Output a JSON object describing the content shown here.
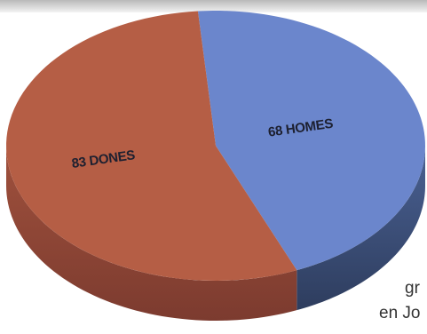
{
  "chart_data": {
    "type": "pie",
    "title": "",
    "categories": [
      "68 HOMES",
      "83 DONES"
    ],
    "values": [
      68,
      83
    ],
    "labels": [
      "68 HOMES",
      "83 DONES"
    ],
    "colors": [
      "#6b86cc",
      "#b55e45"
    ],
    "shadow_colors": [
      "#3c5079",
      "#92463a"
    ],
    "style": "3d-tilted"
  },
  "background_text": [
    "gr",
    "en Jo"
  ]
}
